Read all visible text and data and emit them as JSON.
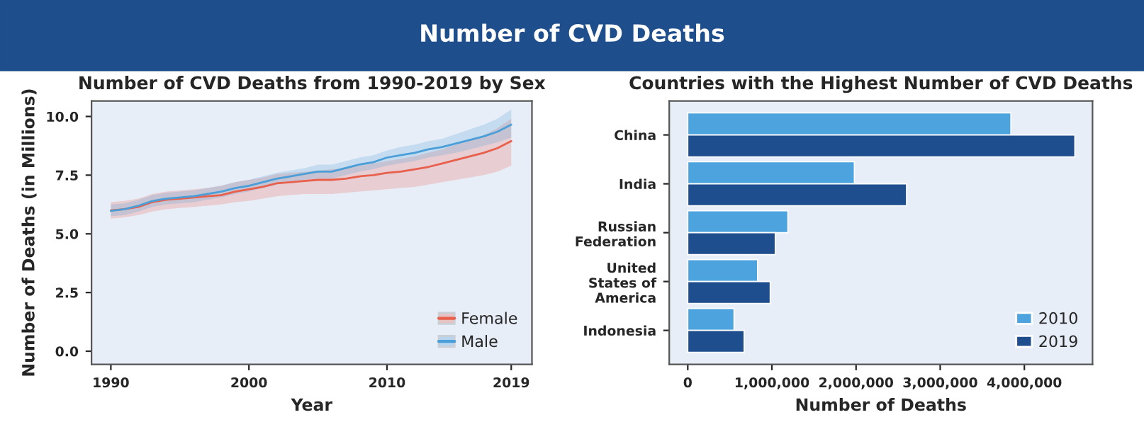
{
  "chart_data": [
    {
      "type": "line",
      "title": "Number of CVD Deaths from 1990-2019 by Sex",
      "xlabel": "Year",
      "ylabel": "Number of Deaths (in Millions)",
      "annotations": [
        "Number of CVD Deaths"
      ],
      "xlim": [
        1988.6,
        2020.5
      ],
      "ylim": [
        -0.56,
        10.66
      ],
      "xticks": [
        1990,
        2000,
        2010,
        2019
      ],
      "yticks": [
        {
          "value": 0,
          "label": "0.0"
        },
        {
          "value": 2.5,
          "label": "2.5"
        },
        {
          "value": 5,
          "label": "5.0"
        },
        {
          "value": 7.5,
          "label": "7.5"
        },
        {
          "value": 10,
          "label": "10.0"
        }
      ],
      "grid": false,
      "legend": "bottom right",
      "marker": "none",
      "line_style": "solid",
      "series": [
        {
          "name": "Female",
          "color": "#e8604c",
          "x": [
            1990,
            1991,
            1992,
            1993,
            1994,
            1995,
            1996,
            1997,
            1998,
            1999,
            2000,
            2001,
            2002,
            2003,
            2004,
            2005,
            2006,
            2007,
            2008,
            2009,
            2010,
            2011,
            2012,
            2013,
            2014,
            2015,
            2016,
            2017,
            2018,
            2019
          ],
          "values": [
            6.0,
            6.05,
            6.15,
            6.35,
            6.45,
            6.5,
            6.55,
            6.6,
            6.65,
            6.8,
            6.9,
            7.0,
            7.15,
            7.2,
            7.25,
            7.3,
            7.3,
            7.35,
            7.45,
            7.5,
            7.6,
            7.65,
            7.75,
            7.85,
            8.0,
            8.15,
            8.3,
            8.45,
            8.65,
            8.95
          ],
          "lower": [
            5.65,
            5.7,
            5.8,
            5.95,
            6.05,
            6.1,
            6.15,
            6.2,
            6.25,
            6.35,
            6.4,
            6.5,
            6.6,
            6.65,
            6.7,
            6.7,
            6.7,
            6.75,
            6.8,
            6.85,
            6.9,
            6.95,
            7.0,
            7.1,
            7.2,
            7.3,
            7.4,
            7.5,
            7.65,
            7.9
          ],
          "upper": [
            6.35,
            6.4,
            6.5,
            6.7,
            6.8,
            6.85,
            6.9,
            6.95,
            7.05,
            7.2,
            7.3,
            7.4,
            7.55,
            7.6,
            7.65,
            7.7,
            7.75,
            7.8,
            7.9,
            8.0,
            8.1,
            8.2,
            8.3,
            8.45,
            8.6,
            8.8,
            9.0,
            9.2,
            9.5,
            9.9
          ]
        },
        {
          "name": "Male",
          "color": "#4a9fd8",
          "x": [
            1990,
            1991,
            1992,
            1993,
            1994,
            1995,
            1996,
            1997,
            1998,
            1999,
            2000,
            2001,
            2002,
            2003,
            2004,
            2005,
            2006,
            2007,
            2008,
            2009,
            2010,
            2011,
            2012,
            2013,
            2014,
            2015,
            2016,
            2017,
            2018,
            2019
          ],
          "values": [
            5.98,
            6.05,
            6.2,
            6.4,
            6.5,
            6.55,
            6.6,
            6.7,
            6.8,
            6.95,
            7.05,
            7.2,
            7.35,
            7.45,
            7.55,
            7.65,
            7.65,
            7.8,
            7.95,
            8.05,
            8.25,
            8.35,
            8.45,
            8.6,
            8.7,
            8.85,
            9.0,
            9.15,
            9.35,
            9.65
          ],
          "lower": [
            5.75,
            5.8,
            5.95,
            6.15,
            6.25,
            6.3,
            6.35,
            6.45,
            6.55,
            6.7,
            6.8,
            6.95,
            7.1,
            7.2,
            7.3,
            7.35,
            7.35,
            7.5,
            7.65,
            7.75,
            7.9,
            8.0,
            8.1,
            8.25,
            8.35,
            8.45,
            8.6,
            8.75,
            8.9,
            9.1
          ],
          "upper": [
            6.25,
            6.3,
            6.45,
            6.65,
            6.75,
            6.8,
            6.85,
            6.95,
            7.05,
            7.2,
            7.3,
            7.45,
            7.6,
            7.7,
            7.8,
            7.95,
            7.95,
            8.1,
            8.25,
            8.35,
            8.55,
            8.7,
            8.8,
            8.95,
            9.05,
            9.25,
            9.45,
            9.65,
            9.9,
            10.3
          ]
        }
      ]
    },
    {
      "type": "bar",
      "orientation": "horizontal",
      "title": "Countries with the Highest Number of CVD Deaths",
      "xlabel": "Number of Deaths",
      "categories": [
        "China",
        "India",
        "Russian\nFederation",
        "United\nStates of\nAmerica",
        "Indonesia"
      ],
      "xlim": [
        -220000,
        4810000
      ],
      "xticks": [
        0,
        {
          "value": 1000000,
          "label": "1,000,000"
        },
        {
          "value": 2000000,
          "label": "2,000,000"
        },
        {
          "value": 3000000,
          "label": "3,000,000"
        },
        {
          "value": 4000000,
          "label": "4,000,000"
        }
      ],
      "grid": false,
      "legend": "bottom right",
      "series": [
        {
          "name": "2010",
          "color": "#4da3dd",
          "values": [
            3840000,
            1980000,
            1190000,
            830000,
            550000
          ]
        },
        {
          "name": "2019",
          "color": "#1f4e8f",
          "values": [
            4600000,
            2600000,
            1040000,
            980000,
            670000
          ]
        }
      ]
    }
  ]
}
